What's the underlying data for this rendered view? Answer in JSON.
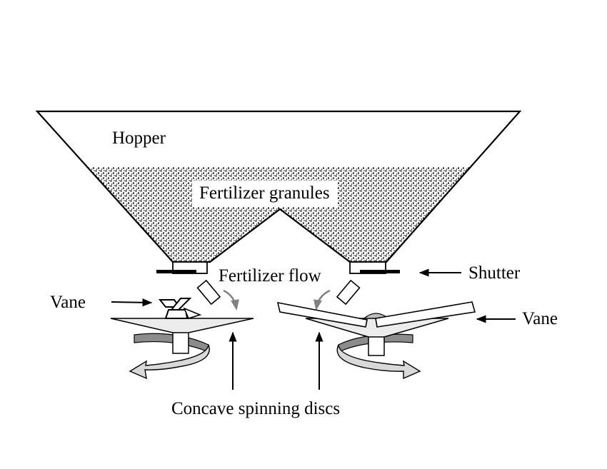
{
  "labels": {
    "hopper": "Hopper",
    "granules": "Fertilizer granules",
    "flow": "Fertilizer flow",
    "shutter": "Shutter",
    "vane_left": "Vane",
    "vane_right": "Vane",
    "discs": "Concave spinning discs"
  },
  "colors": {
    "line": "#000000",
    "granule_dots": "#000000",
    "disc_fill": "#ececec",
    "rotation_arrow_fill": "#d9d9d9",
    "rotation_arrow_dark": "#8c8c8c",
    "flow_arrow": "#808080"
  }
}
